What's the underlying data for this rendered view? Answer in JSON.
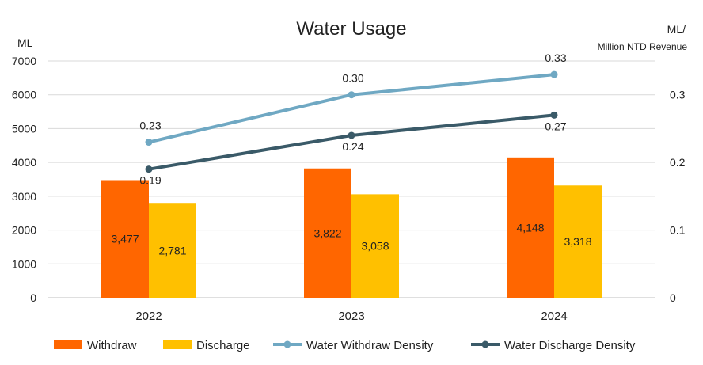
{
  "chart_data": {
    "type": "bar",
    "title": "Water Usage",
    "y_left": {
      "unit": "ML",
      "range": [
        0,
        7000
      ],
      "ticks": [
        "0",
        "1000",
        "2000",
        "3000",
        "4000",
        "5000",
        "6000",
        "7000"
      ]
    },
    "y_right": {
      "unit_line1": "ML/",
      "unit_line2": "Million NTD Revenue",
      "range": [
        0,
        0.35
      ],
      "ticks": [
        "0",
        "0.1",
        "0.2",
        "0.3"
      ]
    },
    "categories": [
      "2022",
      "2023",
      "2024"
    ],
    "bar_series": [
      {
        "name": "Withdraw",
        "color": "#FF6600",
        "values": [
          3477,
          3822,
          4148
        ],
        "labels": [
          "3,477",
          "3,822",
          "4,148"
        ]
      },
      {
        "name": "Discharge",
        "color": "#FFC000",
        "values": [
          2781,
          3058,
          3318
        ],
        "labels": [
          "2,781",
          "3,058",
          "3,318"
        ]
      }
    ],
    "line_series": [
      {
        "name": "Water Withdraw Density",
        "color": "#6FA8C3",
        "values": [
          0.23,
          0.3,
          0.33
        ],
        "labels": [
          "0.23",
          "0.30",
          "0.33"
        ]
      },
      {
        "name": "Water Discharge Density",
        "color": "#3A5A68",
        "values": [
          0.19,
          0.24,
          0.27
        ],
        "labels": [
          "0.19",
          "0.24",
          "0.27"
        ]
      }
    ],
    "grid": true,
    "legend_position": "bottom"
  }
}
